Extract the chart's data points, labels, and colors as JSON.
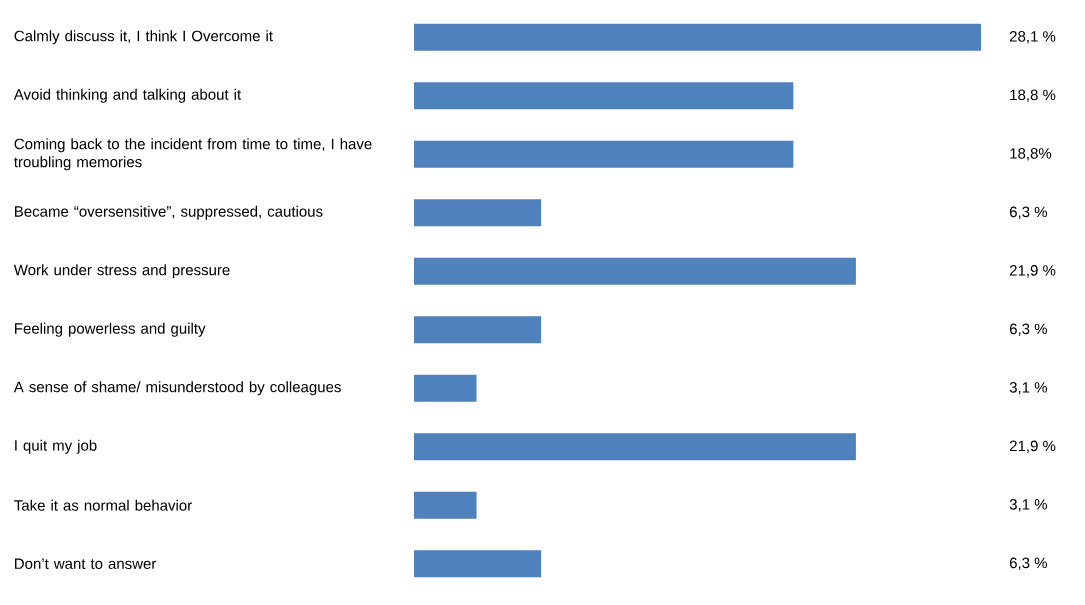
{
  "chart_data": {
    "type": "bar",
    "orientation": "horizontal",
    "color": "#4f81bd",
    "categories": [
      "Calmly discuss it, I think I Overcome it",
      "Avoid thinking and talking about it",
      "Coming back to the incident from time to time, I have troubling memories",
      "Became “oversensitive”, suppressed, cautious",
      "Work under stress and pressure",
      "Feeling powerless and guilty",
      "A sense of shame/ misunderstood by colleagues",
      "I quit my job",
      "Take it as normal behavior",
      "Don’t want to answer"
    ],
    "values": [
      28.1,
      18.8,
      18.8,
      6.3,
      21.9,
      6.3,
      3.1,
      21.9,
      3.1,
      6.3
    ],
    "value_labels": [
      "28,1 %",
      "18,8 %",
      "18,8%",
      "6,3 %",
      "21,9 %",
      "6,3 %",
      "3,1 %",
      "21,9 %",
      "3,1 %",
      "6,3 %"
    ]
  }
}
